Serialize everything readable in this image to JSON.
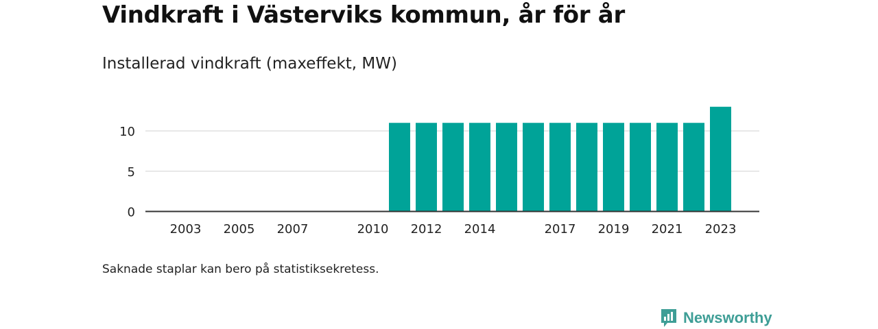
{
  "header": {
    "title": "Vindkraft i Västerviks kommun, år för år",
    "subtitle": "Installerad vindkraft (maxeffekt, MW)"
  },
  "footer": {
    "note": "Saknade staplar kan bero på statistiksekretess.",
    "brand": "Newsworthy"
  },
  "colors": {
    "bar": "#00a398",
    "grid": "#e0e0e0",
    "axis": "#333333",
    "brand": "#3e9e96"
  },
  "chart_data": {
    "type": "bar",
    "categories": [
      2003,
      2004,
      2005,
      2006,
      2007,
      2008,
      2009,
      2010,
      2011,
      2012,
      2013,
      2014,
      2015,
      2016,
      2017,
      2018,
      2019,
      2020,
      2021,
      2022,
      2023
    ],
    "values": [
      null,
      null,
      null,
      null,
      null,
      null,
      null,
      null,
      11,
      11,
      11,
      11,
      11,
      11,
      11,
      11,
      11,
      11,
      11,
      11,
      13
    ],
    "x_tick_labels": [
      "2003",
      "2005",
      "2007",
      "2010",
      "2012",
      "2014",
      "2017",
      "2019",
      "2021",
      "2023"
    ],
    "y_ticks": [
      0,
      5,
      10
    ],
    "ylim": [
      0,
      13
    ],
    "grid": true,
    "title": "",
    "xlabel": "",
    "ylabel": ""
  }
}
